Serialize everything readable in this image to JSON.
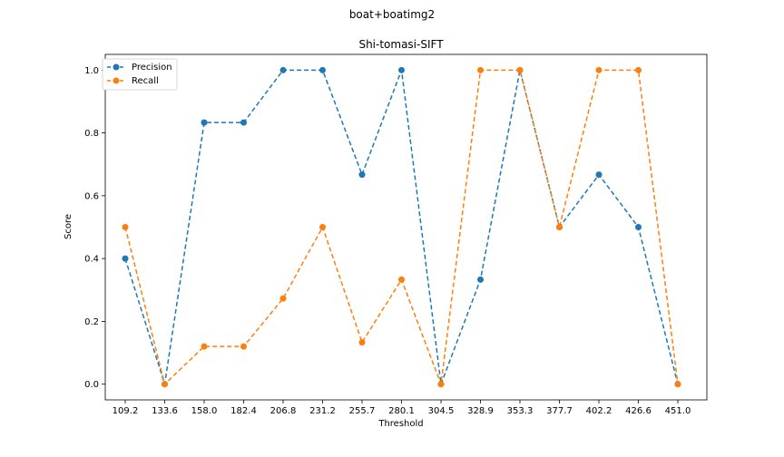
{
  "figure": {
    "suptitle": "boat+boatimg2"
  },
  "chart_data": {
    "type": "line",
    "title": "Shi-tomasi-SIFT",
    "xlabel": "Threshold",
    "ylabel": "Score",
    "categories": [
      "109.2",
      "133.6",
      "158.0",
      "182.4",
      "206.8",
      "231.2",
      "255.7",
      "280.1",
      "304.5",
      "328.9",
      "353.3",
      "377.7",
      "402.2",
      "426.6",
      "451.0"
    ],
    "yticks": [
      "0.0",
      "0.2",
      "0.4",
      "0.6",
      "0.8",
      "1.0"
    ],
    "ylim": [
      -0.05,
      1.05
    ],
    "grid": false,
    "legend_position": "upper-left",
    "series": [
      {
        "name": "Precision",
        "color": "#1f77b4",
        "values": [
          0.4,
          0.0,
          0.833,
          0.833,
          1.0,
          1.0,
          0.667,
          1.0,
          0.0,
          0.333,
          1.0,
          0.5,
          0.667,
          0.5,
          0.0
        ]
      },
      {
        "name": "Recall",
        "color": "#ff7f0e",
        "values": [
          0.5,
          0.0,
          0.12,
          0.12,
          0.273,
          0.5,
          0.133,
          0.333,
          0.0,
          1.0,
          1.0,
          0.5,
          1.0,
          1.0,
          0.0
        ]
      }
    ]
  }
}
